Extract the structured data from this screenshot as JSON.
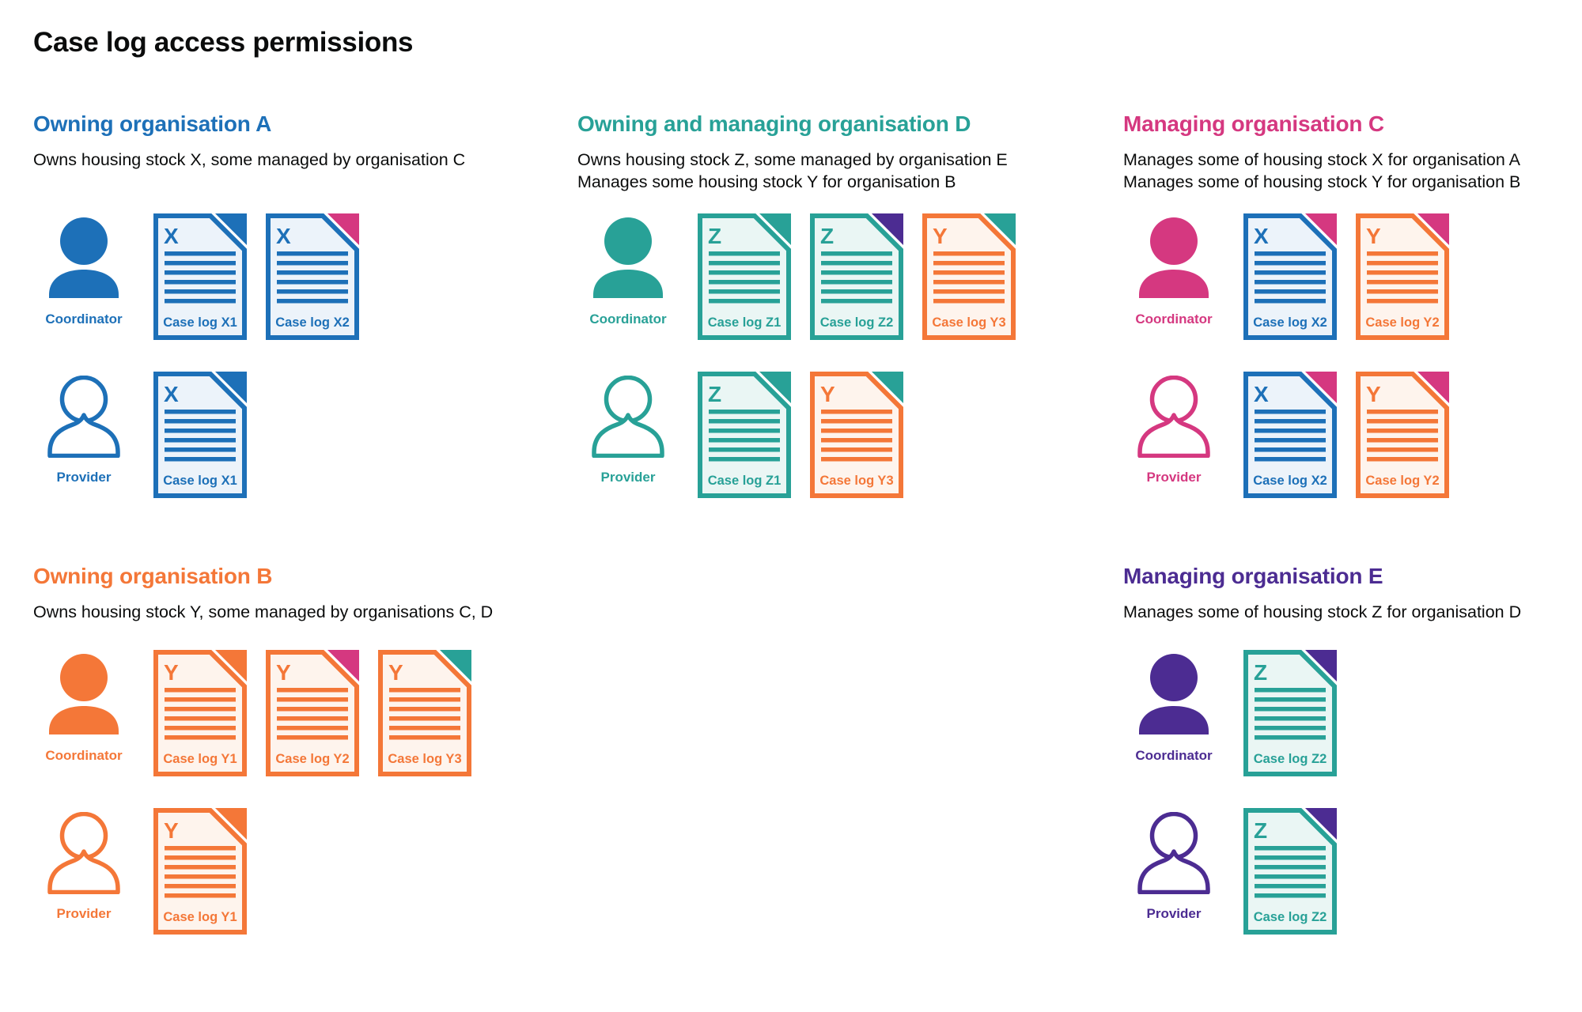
{
  "page": {
    "title": "Case log access permissions",
    "background": "#ffffff",
    "text_color": "#0b0c0c"
  },
  "palette": {
    "blue": "#1d70b8",
    "teal": "#28a197",
    "pink": "#d53880",
    "orange": "#f47738",
    "purple": "#4c2c92"
  },
  "doc_fills": {
    "blue": "#ecf3fa",
    "teal": "#eaf6f4",
    "orange": "#fef4ed"
  },
  "legend": {
    "coordinator_label": "Coordinator",
    "provider_label": "Provider",
    "fold_meaning": "fold corner colour indicates managing organisation"
  },
  "sections": [
    {
      "id": "owning-org-a",
      "title": "Owning organisation A",
      "color": "blue",
      "description": [
        "Owns housing stock X, some managed by organisation C"
      ],
      "rows": [
        {
          "role": "Coordinator",
          "person_style": "filled",
          "docs": [
            {
              "letter": "X",
              "label": "Case log X1",
              "doc_color": "blue",
              "fold_color": "blue"
            },
            {
              "letter": "X",
              "label": "Case log X2",
              "doc_color": "blue",
              "fold_color": "pink"
            }
          ]
        },
        {
          "role": "Provider",
          "person_style": "outline",
          "docs": [
            {
              "letter": "X",
              "label": "Case log X1",
              "doc_color": "blue",
              "fold_color": "blue"
            }
          ]
        }
      ]
    },
    {
      "id": "owning-managing-org-d",
      "title": "Owning and managing organisation D",
      "color": "teal",
      "description": [
        "Owns housing stock Z, some managed by organisation E",
        "Manages some housing stock Y for organisation B"
      ],
      "rows": [
        {
          "role": "Coordinator",
          "person_style": "filled",
          "docs": [
            {
              "letter": "Z",
              "label": "Case log Z1",
              "doc_color": "teal",
              "fold_color": "teal"
            },
            {
              "letter": "Z",
              "label": "Case log Z2",
              "doc_color": "teal",
              "fold_color": "purple"
            },
            {
              "letter": "Y",
              "label": "Case log Y3",
              "doc_color": "orange",
              "fold_color": "teal"
            }
          ]
        },
        {
          "role": "Provider",
          "person_style": "outline",
          "docs": [
            {
              "letter": "Z",
              "label": "Case log Z1",
              "doc_color": "teal",
              "fold_color": "teal"
            },
            {
              "letter": "Y",
              "label": "Case log Y3",
              "doc_color": "orange",
              "fold_color": "teal"
            }
          ]
        }
      ]
    },
    {
      "id": "managing-org-c",
      "title": "Managing organisation C",
      "color": "pink",
      "description": [
        "Manages some of housing stock X for organisation A",
        "Manages some of housing stock Y for organisation B"
      ],
      "rows": [
        {
          "role": "Coordinator",
          "person_style": "filled",
          "docs": [
            {
              "letter": "X",
              "label": "Case log X2",
              "doc_color": "blue",
              "fold_color": "pink"
            },
            {
              "letter": "Y",
              "label": "Case log Y2",
              "doc_color": "orange",
              "fold_color": "pink"
            }
          ]
        },
        {
          "role": "Provider",
          "person_style": "outline",
          "docs": [
            {
              "letter": "X",
              "label": "Case log X2",
              "doc_color": "blue",
              "fold_color": "pink"
            },
            {
              "letter": "Y",
              "label": "Case log Y2",
              "doc_color": "orange",
              "fold_color": "pink"
            }
          ]
        }
      ]
    },
    {
      "id": "owning-org-b",
      "title": "Owning organisation B",
      "color": "orange",
      "description": [
        "Owns housing stock Y, some managed by organisations C, D"
      ],
      "rows": [
        {
          "role": "Coordinator",
          "person_style": "filled",
          "docs": [
            {
              "letter": "Y",
              "label": "Case log Y1",
              "doc_color": "orange",
              "fold_color": "orange"
            },
            {
              "letter": "Y",
              "label": "Case log Y2",
              "doc_color": "orange",
              "fold_color": "pink"
            },
            {
              "letter": "Y",
              "label": "Case log Y3",
              "doc_color": "orange",
              "fold_color": "teal"
            }
          ]
        },
        {
          "role": "Provider",
          "person_style": "outline",
          "docs": [
            {
              "letter": "Y",
              "label": "Case log Y1",
              "doc_color": "orange",
              "fold_color": "orange"
            }
          ]
        }
      ]
    },
    {
      "id": "managing-org-e",
      "title": "Managing organisation E",
      "color": "purple",
      "description": [
        "Manages some of housing stock Z for organisation D"
      ],
      "rows": [
        {
          "role": "Coordinator",
          "person_style": "filled",
          "docs": [
            {
              "letter": "Z",
              "label": "Case log Z2",
              "doc_color": "teal",
              "fold_color": "purple"
            }
          ]
        },
        {
          "role": "Provider",
          "person_style": "outline",
          "docs": [
            {
              "letter": "Z",
              "label": "Case log Z2",
              "doc_color": "teal",
              "fold_color": "purple"
            }
          ]
        }
      ]
    }
  ]
}
